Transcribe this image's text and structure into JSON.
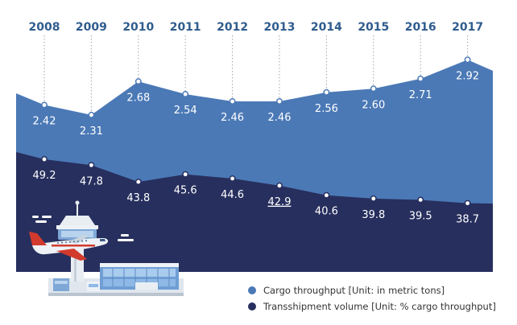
{
  "colors": {
    "cargo_area": "#4b79b6",
    "transship_area": "#272f5e",
    "year_text": "#2f5c8d",
    "dotted_line": "#9aa4ad",
    "marker": "#ffffff"
  },
  "chart_data": {
    "type": "area",
    "categories": [
      "2008",
      "2009",
      "2010",
      "2011",
      "2012",
      "2013",
      "2014",
      "2015",
      "2016",
      "2017"
    ],
    "series": [
      {
        "name": "Cargo throughput [Unit: in metric tons]",
        "values": [
          2.42,
          2.31,
          2.68,
          2.54,
          2.46,
          2.46,
          2.56,
          2.6,
          2.71,
          2.92
        ],
        "labels": [
          "2.42",
          "2.31",
          "2.68",
          "2.54",
          "2.46",
          "2.46",
          "2.56",
          "2.60",
          "2.71",
          "2.92"
        ],
        "color": "#4b79b6"
      },
      {
        "name": "Transshipment volume [Unit: % cargo throughput]",
        "values": [
          49.2,
          47.8,
          43.8,
          45.6,
          44.6,
          42.9,
          40.6,
          39.8,
          39.5,
          38.7
        ],
        "labels": [
          "49.2",
          "47.8",
          "43.8",
          "45.6",
          "44.6",
          "42.9",
          "40.6",
          "39.8",
          "39.5",
          "38.7"
        ],
        "color": "#272f5e"
      }
    ],
    "legend_position": "bottom-right",
    "grid": false,
    "title": "",
    "xlabel": "",
    "ylabel": ""
  },
  "legend": {
    "cargo": "Cargo throughput [Unit: in metric tons]",
    "transship": "Transshipment volume [Unit: % cargo throughput]"
  }
}
